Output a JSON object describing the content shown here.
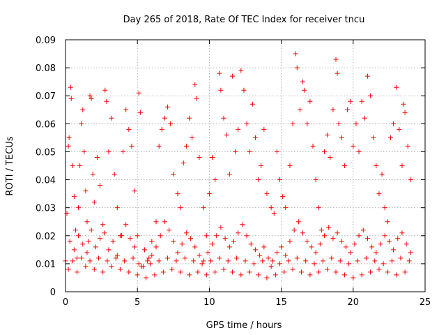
{
  "chart_data": {
    "type": "scatter",
    "title": "Day 265 of 2018, Rate Of TEC Index for receiver tncu",
    "xlabel": "GPS time / hours",
    "ylabel": "ROTI / TECUs",
    "xlim": [
      0,
      25
    ],
    "ylim": [
      0,
      0.09
    ],
    "xticks": [
      0,
      5,
      10,
      15,
      20,
      25
    ],
    "yticks": [
      0,
      0.01,
      0.02,
      0.03,
      0.04,
      0.05,
      0.06,
      0.07,
      0.08,
      0.09
    ],
    "xtick_labels": [
      "0",
      "5",
      "10",
      "15",
      "20",
      "25"
    ],
    "ytick_labels": [
      "0",
      "0.01",
      "0.02",
      "0.03",
      "0.04",
      "0.05",
      "0.06",
      "0.07",
      "0.08",
      "0.09"
    ],
    "grid": true,
    "marker": "+",
    "color": "#ff0000",
    "series": [
      {
        "points": [
          [
            0.0,
            0.011
          ],
          [
            0.1,
            0.028
          ],
          [
            0.2,
            0.052
          ],
          [
            0.25,
            0.055
          ],
          [
            0.35,
            0.073
          ],
          [
            0.4,
            0.069
          ],
          [
            0.5,
            0.045
          ],
          [
            0.6,
            0.034
          ],
          [
            0.7,
            0.022
          ],
          [
            0.8,
            0.012
          ],
          [
            0.9,
            0.03
          ],
          [
            1.0,
            0.045
          ],
          [
            1.1,
            0.06
          ],
          [
            1.2,
            0.065
          ],
          [
            1.3,
            0.05
          ],
          [
            1.4,
            0.036
          ],
          [
            1.5,
            0.025
          ],
          [
            1.6,
            0.018
          ],
          [
            1.7,
            0.07
          ],
          [
            1.8,
            0.069
          ],
          [
            1.9,
            0.042
          ],
          [
            2.0,
            0.032
          ],
          [
            2.2,
            0.048
          ],
          [
            2.4,
            0.038
          ],
          [
            2.6,
            0.024
          ],
          [
            2.75,
            0.072
          ],
          [
            2.85,
            0.068
          ],
          [
            3.0,
            0.05
          ],
          [
            3.2,
            0.062
          ],
          [
            3.4,
            0.042
          ],
          [
            3.6,
            0.03
          ],
          [
            3.8,
            0.02
          ],
          [
            4.0,
            0.05
          ],
          [
            4.2,
            0.065
          ],
          [
            4.4,
            0.058
          ],
          [
            4.6,
            0.052
          ],
          [
            4.8,
            0.036
          ],
          [
            5.0,
            0.02
          ],
          [
            5.1,
            0.071
          ],
          [
            5.2,
            0.064
          ],
          [
            5.5,
            0.015
          ],
          [
            5.8,
            0.012
          ],
          [
            6.0,
            0.018
          ],
          [
            6.3,
            0.025
          ],
          [
            6.5,
            0.052
          ],
          [
            6.7,
            0.058
          ],
          [
            6.9,
            0.062
          ],
          [
            7.1,
            0.066
          ],
          [
            7.3,
            0.06
          ],
          [
            7.5,
            0.042
          ],
          [
            7.8,
            0.035
          ],
          [
            8.0,
            0.03
          ],
          [
            8.2,
            0.046
          ],
          [
            8.4,
            0.052
          ],
          [
            8.6,
            0.062
          ],
          [
            8.8,
            0.055
          ],
          [
            9.0,
            0.074
          ],
          [
            9.1,
            0.069
          ],
          [
            9.3,
            0.048
          ],
          [
            9.6,
            0.03
          ],
          [
            9.8,
            0.02
          ],
          [
            10.0,
            0.035
          ],
          [
            10.2,
            0.048
          ],
          [
            10.4,
            0.04
          ],
          [
            10.7,
            0.078
          ],
          [
            10.8,
            0.072
          ],
          [
            11.0,
            0.062
          ],
          [
            11.2,
            0.056
          ],
          [
            11.4,
            0.042
          ],
          [
            11.6,
            0.077
          ],
          [
            11.8,
            0.05
          ],
          [
            12.0,
            0.058
          ],
          [
            12.2,
            0.079
          ],
          [
            12.4,
            0.072
          ],
          [
            12.6,
            0.06
          ],
          [
            12.8,
            0.05
          ],
          [
            13.0,
            0.067
          ],
          [
            13.2,
            0.055
          ],
          [
            13.4,
            0.04
          ],
          [
            13.6,
            0.045
          ],
          [
            13.8,
            0.058
          ],
          [
            14.0,
            0.035
          ],
          [
            14.3,
            0.03
          ],
          [
            14.5,
            0.028
          ],
          [
            14.7,
            0.05
          ],
          [
            14.9,
            0.04
          ],
          [
            15.1,
            0.034
          ],
          [
            15.3,
            0.03
          ],
          [
            15.6,
            0.045
          ],
          [
            15.8,
            0.06
          ],
          [
            16.0,
            0.085
          ],
          [
            16.1,
            0.08
          ],
          [
            16.3,
            0.065
          ],
          [
            16.5,
            0.075
          ],
          [
            16.6,
            0.072
          ],
          [
            16.8,
            0.06
          ],
          [
            17.0,
            0.068
          ],
          [
            17.2,
            0.052
          ],
          [
            17.4,
            0.04
          ],
          [
            17.6,
            0.03
          ],
          [
            17.8,
            0.022
          ],
          [
            18.0,
            0.05
          ],
          [
            18.2,
            0.056
          ],
          [
            18.4,
            0.048
          ],
          [
            18.6,
            0.065
          ],
          [
            18.8,
            0.083
          ],
          [
            18.9,
            0.078
          ],
          [
            19.0,
            0.06
          ],
          [
            19.2,
            0.055
          ],
          [
            19.4,
            0.045
          ],
          [
            19.6,
            0.065
          ],
          [
            19.8,
            0.068
          ],
          [
            20.0,
            0.052
          ],
          [
            20.2,
            0.06
          ],
          [
            20.4,
            0.05
          ],
          [
            20.6,
            0.068
          ],
          [
            20.8,
            0.062
          ],
          [
            21.0,
            0.077
          ],
          [
            21.2,
            0.07
          ],
          [
            21.4,
            0.055
          ],
          [
            21.6,
            0.045
          ],
          [
            21.8,
            0.035
          ],
          [
            22.0,
            0.042
          ],
          [
            22.2,
            0.03
          ],
          [
            22.4,
            0.025
          ],
          [
            22.6,
            0.055
          ],
          [
            22.8,
            0.06
          ],
          [
            23.0,
            0.073
          ],
          [
            23.2,
            0.058
          ],
          [
            23.4,
            0.045
          ],
          [
            23.5,
            0.067
          ],
          [
            23.6,
            0.064
          ],
          [
            23.8,
            0.052
          ],
          [
            24.0,
            0.04
          ],
          [
            0.3,
            0.018
          ],
          [
            0.6,
            0.015
          ],
          [
            0.9,
            0.02
          ],
          [
            1.2,
            0.017
          ],
          [
            1.5,
            0.014
          ],
          [
            1.8,
            0.022
          ],
          [
            2.1,
            0.016
          ],
          [
            2.4,
            0.019
          ],
          [
            2.7,
            0.021
          ],
          [
            3.0,
            0.015
          ],
          [
            3.3,
            0.018
          ],
          [
            3.6,
            0.013
          ],
          [
            3.9,
            0.02
          ],
          [
            4.2,
            0.024
          ],
          [
            4.5,
            0.019
          ],
          [
            4.8,
            0.016
          ],
          [
            5.1,
            0.01
          ],
          [
            5.4,
            0.009
          ],
          [
            5.7,
            0.011
          ],
          [
            6.0,
            0.013
          ],
          [
            6.3,
            0.016
          ],
          [
            6.6,
            0.02
          ],
          [
            6.9,
            0.025
          ],
          [
            7.2,
            0.022
          ],
          [
            7.5,
            0.018
          ],
          [
            7.8,
            0.014
          ],
          [
            8.1,
            0.017
          ],
          [
            8.4,
            0.021
          ],
          [
            8.7,
            0.019
          ],
          [
            9.0,
            0.016
          ],
          [
            9.3,
            0.013
          ],
          [
            9.6,
            0.011
          ],
          [
            9.9,
            0.014
          ],
          [
            10.2,
            0.017
          ],
          [
            10.5,
            0.02
          ],
          [
            10.8,
            0.023
          ],
          [
            11.1,
            0.019
          ],
          [
            11.4,
            0.016
          ],
          [
            11.7,
            0.018
          ],
          [
            12.0,
            0.021
          ],
          [
            12.3,
            0.024
          ],
          [
            12.6,
            0.02
          ],
          [
            12.9,
            0.017
          ],
          [
            13.2,
            0.015
          ],
          [
            13.5,
            0.013
          ],
          [
            13.8,
            0.016
          ],
          [
            14.1,
            0.012
          ],
          [
            14.4,
            0.011
          ],
          [
            14.7,
            0.014
          ],
          [
            15.0,
            0.016
          ],
          [
            15.3,
            0.013
          ],
          [
            15.6,
            0.018
          ],
          [
            15.9,
            0.022
          ],
          [
            16.2,
            0.025
          ],
          [
            16.5,
            0.021
          ],
          [
            16.8,
            0.018
          ],
          [
            17.1,
            0.016
          ],
          [
            17.4,
            0.014
          ],
          [
            17.7,
            0.017
          ],
          [
            18.0,
            0.02
          ],
          [
            18.3,
            0.023
          ],
          [
            18.6,
            0.019
          ],
          [
            18.9,
            0.021
          ],
          [
            19.2,
            0.018
          ],
          [
            19.5,
            0.016
          ],
          [
            19.8,
            0.014
          ],
          [
            20.1,
            0.017
          ],
          [
            20.4,
            0.02
          ],
          [
            20.7,
            0.022
          ],
          [
            21.0,
            0.019
          ],
          [
            21.3,
            0.016
          ],
          [
            21.6,
            0.014
          ],
          [
            21.9,
            0.017
          ],
          [
            22.2,
            0.02
          ],
          [
            22.5,
            0.018
          ],
          [
            22.8,
            0.015
          ],
          [
            23.1,
            0.019
          ],
          [
            23.4,
            0.021
          ],
          [
            23.7,
            0.017
          ],
          [
            24.0,
            0.014
          ],
          [
            0.2,
            0.008
          ],
          [
            0.8,
            0.007
          ],
          [
            1.4,
            0.009
          ],
          [
            2.0,
            0.008
          ],
          [
            2.6,
            0.007
          ],
          [
            3.2,
            0.009
          ],
          [
            3.8,
            0.008
          ],
          [
            4.4,
            0.007
          ],
          [
            5.0,
            0.006
          ],
          [
            5.6,
            0.005
          ],
          [
            6.2,
            0.006
          ],
          [
            6.8,
            0.007
          ],
          [
            7.4,
            0.008
          ],
          [
            8.0,
            0.007
          ],
          [
            8.6,
            0.006
          ],
          [
            9.2,
            0.007
          ],
          [
            9.8,
            0.006
          ],
          [
            10.4,
            0.007
          ],
          [
            11.0,
            0.008
          ],
          [
            11.6,
            0.007
          ],
          [
            12.2,
            0.006
          ],
          [
            12.8,
            0.007
          ],
          [
            13.4,
            0.006
          ],
          [
            14.0,
            0.005
          ],
          [
            14.6,
            0.006
          ],
          [
            15.2,
            0.007
          ],
          [
            15.8,
            0.008
          ],
          [
            16.4,
            0.007
          ],
          [
            17.0,
            0.006
          ],
          [
            17.6,
            0.007
          ],
          [
            18.2,
            0.008
          ],
          [
            18.8,
            0.007
          ],
          [
            19.4,
            0.006
          ],
          [
            20.0,
            0.005
          ],
          [
            20.6,
            0.006
          ],
          [
            21.2,
            0.007
          ],
          [
            21.8,
            0.008
          ],
          [
            22.4,
            0.007
          ],
          [
            23.0,
            0.006
          ],
          [
            23.6,
            0.007
          ],
          [
            0.5,
            0.011
          ],
          [
            1.1,
            0.012
          ],
          [
            1.7,
            0.011
          ],
          [
            2.3,
            0.012
          ],
          [
            2.9,
            0.011
          ],
          [
            3.5,
            0.012
          ],
          [
            4.1,
            0.011
          ],
          [
            4.7,
            0.012
          ],
          [
            5.3,
            0.009
          ],
          [
            5.9,
            0.01
          ],
          [
            6.5,
            0.011
          ],
          [
            7.1,
            0.012
          ],
          [
            7.7,
            0.011
          ],
          [
            8.3,
            0.012
          ],
          [
            8.9,
            0.011
          ],
          [
            9.5,
            0.01
          ],
          [
            10.1,
            0.011
          ],
          [
            10.7,
            0.012
          ],
          [
            11.3,
            0.011
          ],
          [
            11.9,
            0.012
          ],
          [
            12.5,
            0.011
          ],
          [
            13.1,
            0.01
          ],
          [
            13.7,
            0.011
          ],
          [
            14.3,
            0.009
          ],
          [
            14.9,
            0.01
          ],
          [
            15.5,
            0.011
          ],
          [
            16.1,
            0.012
          ],
          [
            16.7,
            0.011
          ],
          [
            17.3,
            0.01
          ],
          [
            17.9,
            0.011
          ],
          [
            18.5,
            0.012
          ],
          [
            19.1,
            0.011
          ],
          [
            19.7,
            0.01
          ],
          [
            20.3,
            0.011
          ],
          [
            20.9,
            0.012
          ],
          [
            21.5,
            0.011
          ],
          [
            22.1,
            0.01
          ],
          [
            22.7,
            0.011
          ],
          [
            23.3,
            0.012
          ],
          [
            23.9,
            0.011
          ]
        ]
      }
    ]
  }
}
